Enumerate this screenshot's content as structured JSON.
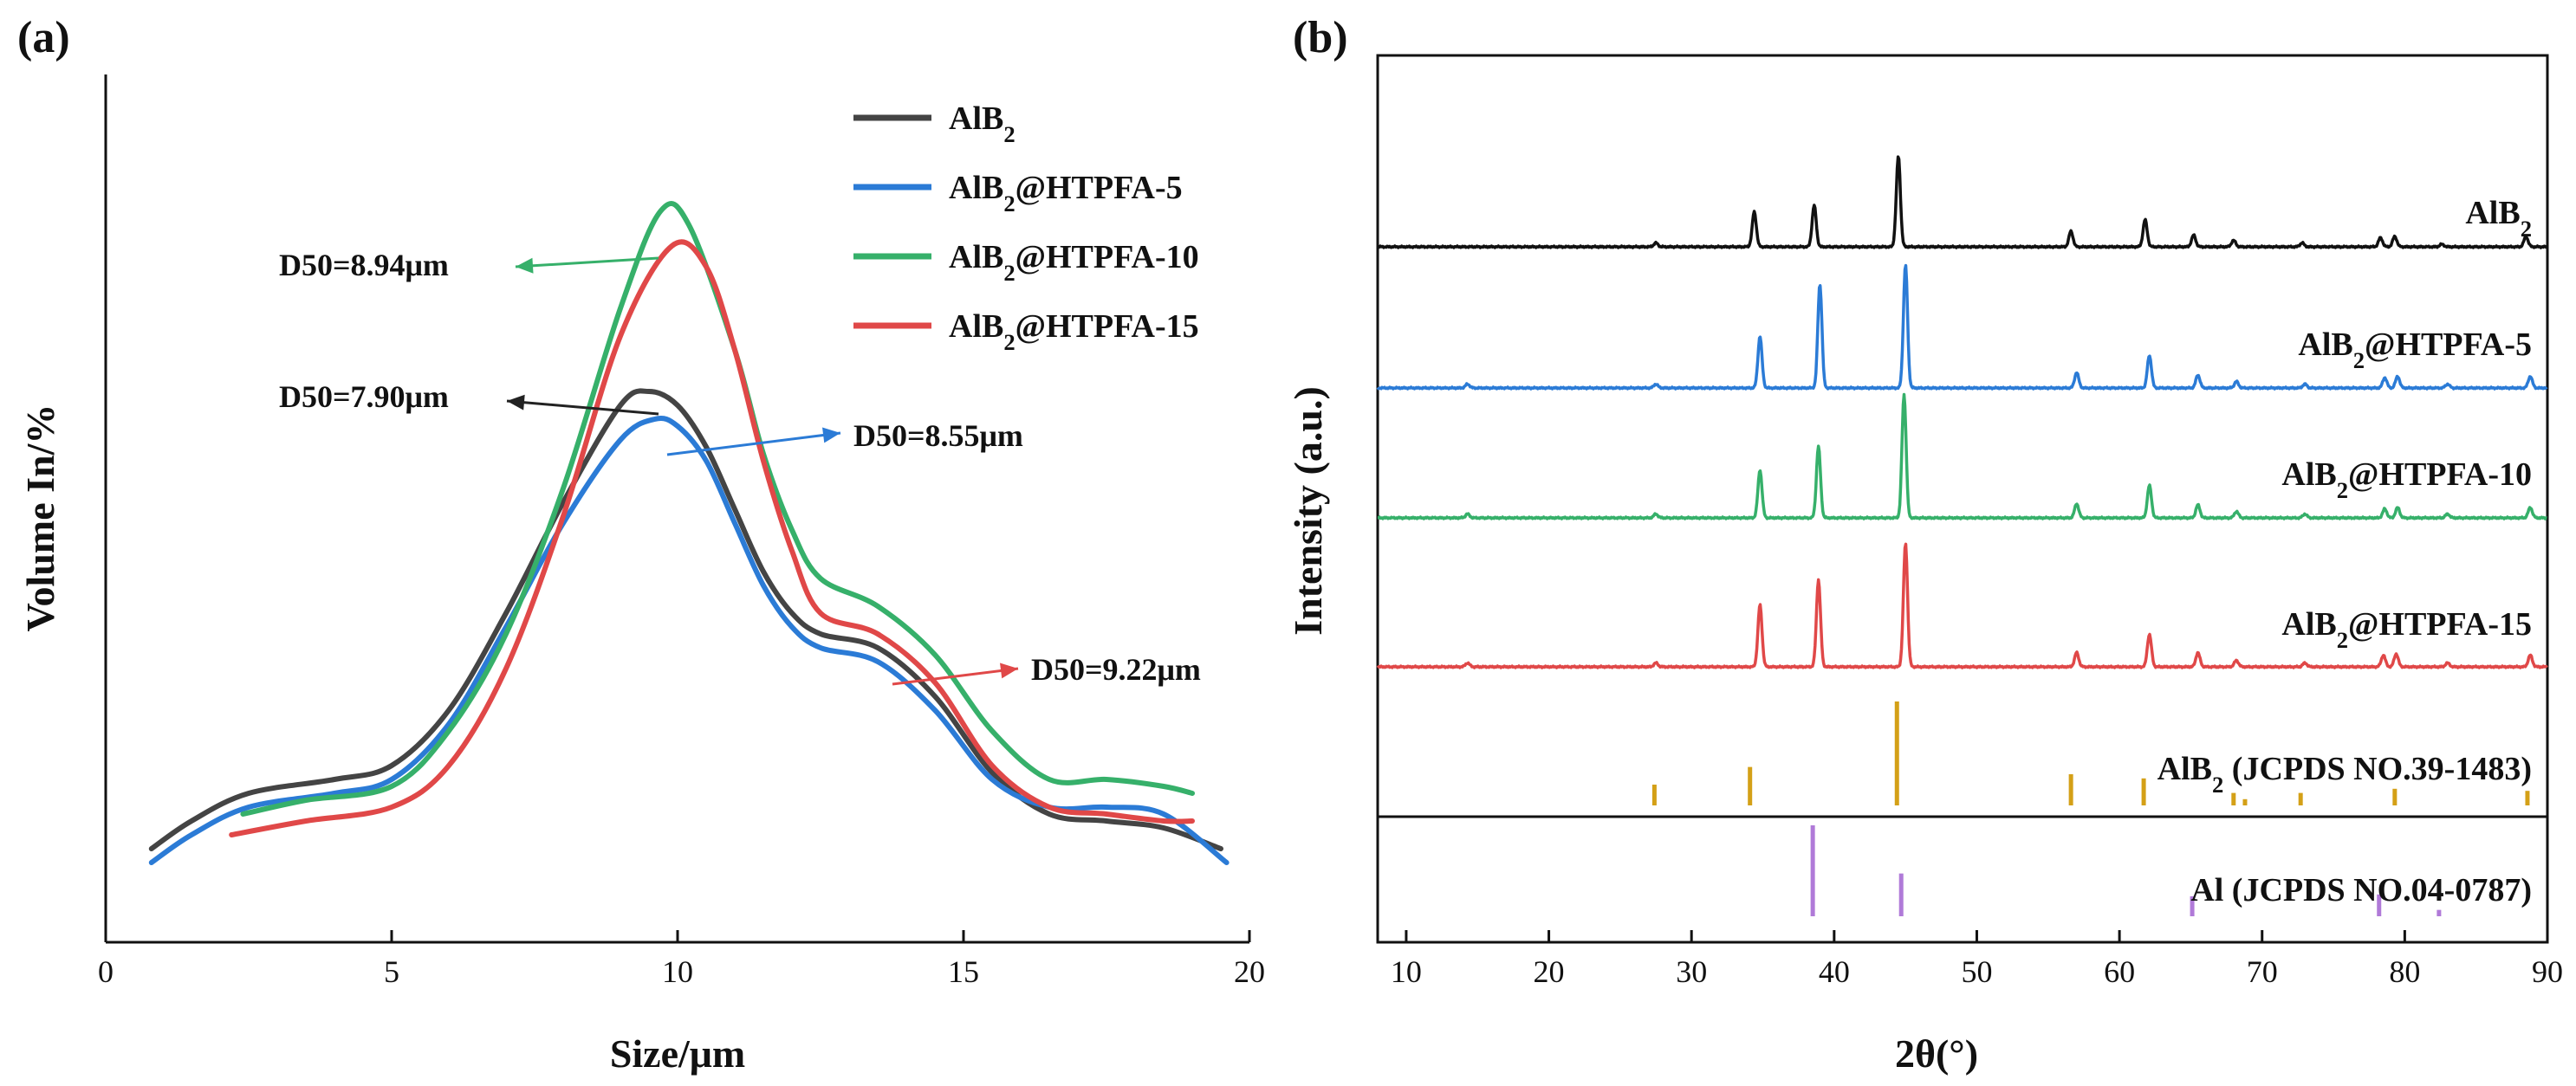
{
  "chart_data": [
    {
      "panel_label": "(a)",
      "type": "line",
      "xlabel": "Size/μm",
      "ylabel": "Volume In/%",
      "xlim": [
        0,
        20
      ],
      "x_ticks": [
        "0",
        "5",
        "10",
        "15",
        "20"
      ],
      "legend": {
        "placement": "top-right"
      },
      "series": [
        {
          "name": "AlB₂",
          "color": "#444444",
          "points": [
            [
              0.8,
              0.06
            ],
            [
              1.5,
              0.1
            ],
            [
              2.5,
              0.14
            ],
            [
              4,
              0.16
            ],
            [
              5,
              0.18
            ],
            [
              6,
              0.26
            ],
            [
              7,
              0.4
            ],
            [
              8,
              0.56
            ],
            [
              9,
              0.7
            ],
            [
              9.5,
              0.72
            ],
            [
              10,
              0.7
            ],
            [
              10.5,
              0.64
            ],
            [
              11,
              0.55
            ],
            [
              11.5,
              0.46
            ],
            [
              12,
              0.4
            ],
            [
              12.5,
              0.37
            ],
            [
              13.5,
              0.35
            ],
            [
              14.5,
              0.28
            ],
            [
              15.5,
              0.17
            ],
            [
              16.5,
              0.11
            ],
            [
              17.5,
              0.1
            ],
            [
              18.5,
              0.09
            ],
            [
              19.5,
              0.06
            ]
          ]
        },
        {
          "name": "AlB₂@HTPFA-5",
          "color": "#2b7bd6",
          "points": [
            [
              0.8,
              0.04
            ],
            [
              1.5,
              0.08
            ],
            [
              2.5,
              0.12
            ],
            [
              4,
              0.14
            ],
            [
              5,
              0.16
            ],
            [
              6,
              0.24
            ],
            [
              7,
              0.38
            ],
            [
              8,
              0.53
            ],
            [
              9,
              0.65
            ],
            [
              9.6,
              0.68
            ],
            [
              10,
              0.67
            ],
            [
              10.5,
              0.62
            ],
            [
              11,
              0.53
            ],
            [
              11.5,
              0.44
            ],
            [
              12,
              0.38
            ],
            [
              12.5,
              0.35
            ],
            [
              13.5,
              0.33
            ],
            [
              14.5,
              0.26
            ],
            [
              15.5,
              0.16
            ],
            [
              16.5,
              0.12
            ],
            [
              17.5,
              0.12
            ],
            [
              18.5,
              0.11
            ],
            [
              19.6,
              0.04
            ]
          ]
        },
        {
          "name": "AlB₂@HTPFA-10",
          "color": "#36b06a",
          "points": [
            [
              2.4,
              0.11
            ],
            [
              3.5,
              0.13
            ],
            [
              5,
              0.15
            ],
            [
              6,
              0.23
            ],
            [
              7,
              0.37
            ],
            [
              8,
              0.58
            ],
            [
              9,
              0.84
            ],
            [
              9.7,
              0.98
            ],
            [
              10.2,
              0.96
            ],
            [
              11,
              0.78
            ],
            [
              11.5,
              0.63
            ],
            [
              12,
              0.52
            ],
            [
              12.5,
              0.45
            ],
            [
              13.5,
              0.41
            ],
            [
              14.5,
              0.34
            ],
            [
              15.5,
              0.23
            ],
            [
              16.5,
              0.16
            ],
            [
              17.5,
              0.16
            ],
            [
              18.5,
              0.15
            ],
            [
              19,
              0.14
            ]
          ]
        },
        {
          "name": "AlB₂@HTPFA-15",
          "color": "#e04848",
          "points": [
            [
              2.2,
              0.08
            ],
            [
              3.5,
              0.1
            ],
            [
              5,
              0.12
            ],
            [
              6,
              0.18
            ],
            [
              7,
              0.32
            ],
            [
              8,
              0.54
            ],
            [
              9,
              0.8
            ],
            [
              9.9,
              0.93
            ],
            [
              10.5,
              0.9
            ],
            [
              11,
              0.78
            ],
            [
              11.5,
              0.62
            ],
            [
              12,
              0.49
            ],
            [
              12.5,
              0.4
            ],
            [
              13.5,
              0.37
            ],
            [
              14.5,
              0.3
            ],
            [
              15.5,
              0.18
            ],
            [
              16.5,
              0.12
            ],
            [
              17.5,
              0.11
            ],
            [
              18.5,
              0.1
            ],
            [
              19,
              0.1
            ]
          ]
        }
      ],
      "annotations": [
        {
          "text": "D50=8.94μm",
          "color": "#36b06a"
        },
        {
          "text": "D50=7.90μm",
          "color": "#222222"
        },
        {
          "text": "D50=8.55μm",
          "color": "#2b7bd6"
        },
        {
          "text": "D50=9.22μm",
          "color": "#e04848"
        }
      ]
    },
    {
      "panel_label": "(b)",
      "type": "line",
      "xlabel": "2θ(°)",
      "ylabel": "Intensity (a.u.)",
      "xlim": [
        8,
        90
      ],
      "x_ticks": [
        "10",
        "20",
        "30",
        "40",
        "50",
        "60",
        "70",
        "80",
        "90"
      ],
      "series": [
        {
          "name": "AlB₂",
          "color": "#111111",
          "peaks": [
            [
              27.5,
              0.03
            ],
            [
              34.4,
              0.27
            ],
            [
              38.6,
              0.32
            ],
            [
              44.5,
              0.7
            ],
            [
              56.6,
              0.12
            ],
            [
              61.8,
              0.21
            ],
            [
              65.2,
              0.09
            ],
            [
              68.0,
              0.05
            ],
            [
              72.8,
              0.03
            ],
            [
              78.3,
              0.07
            ],
            [
              79.3,
              0.08
            ],
            [
              82.6,
              0.02
            ],
            [
              88.5,
              0.08
            ]
          ]
        },
        {
          "name": "AlB₂@HTPFA-5",
          "color": "#2b7bd6",
          "peaks": [
            [
              14.3,
              0.03
            ],
            [
              27.5,
              0.03
            ],
            [
              34.8,
              0.4
            ],
            [
              39.0,
              0.8
            ],
            [
              45.0,
              0.95
            ],
            [
              57.0,
              0.12
            ],
            [
              62.1,
              0.25
            ],
            [
              65.5,
              0.1
            ],
            [
              68.2,
              0.05
            ],
            [
              73.0,
              0.03
            ],
            [
              78.6,
              0.08
            ],
            [
              79.5,
              0.09
            ],
            [
              83.0,
              0.03
            ],
            [
              88.8,
              0.09
            ]
          ]
        },
        {
          "name": "AlB₂@HTPFA-10",
          "color": "#36b06a",
          "peaks": [
            [
              14.3,
              0.03
            ],
            [
              27.5,
              0.03
            ],
            [
              34.8,
              0.37
            ],
            [
              38.9,
              0.55
            ],
            [
              44.9,
              0.95
            ],
            [
              57.0,
              0.11
            ],
            [
              62.1,
              0.25
            ],
            [
              65.5,
              0.1
            ],
            [
              68.2,
              0.05
            ],
            [
              73.0,
              0.03
            ],
            [
              78.6,
              0.07
            ],
            [
              79.5,
              0.08
            ],
            [
              83.0,
              0.03
            ],
            [
              88.8,
              0.08
            ]
          ]
        },
        {
          "name": "AlB₂@HTPFA-15",
          "color": "#e04848",
          "peaks": [
            [
              14.3,
              0.03
            ],
            [
              27.5,
              0.03
            ],
            [
              34.8,
              0.48
            ],
            [
              38.9,
              0.67
            ],
            [
              45.0,
              0.95
            ],
            [
              57.0,
              0.11
            ],
            [
              62.1,
              0.25
            ],
            [
              65.5,
              0.11
            ],
            [
              68.2,
              0.05
            ],
            [
              73.0,
              0.03
            ],
            [
              78.5,
              0.09
            ],
            [
              79.4,
              0.1
            ],
            [
              83.0,
              0.03
            ],
            [
              88.8,
              0.09
            ]
          ]
        },
        {
          "name": "AlB₂ (JCPDS NO.39-1483)",
          "color": "#d4a017",
          "style": "sticks",
          "peaks": [
            [
              27.4,
              0.2
            ],
            [
              34.1,
              0.37
            ],
            [
              44.4,
              1.0
            ],
            [
              56.6,
              0.3
            ],
            [
              61.7,
              0.26
            ],
            [
              68.0,
              0.12
            ],
            [
              68.8,
              0.06
            ],
            [
              72.7,
              0.12
            ],
            [
              79.3,
              0.16
            ],
            [
              88.6,
              0.14
            ]
          ]
        },
        {
          "name": "Al (JCPDS NO.04-0787)",
          "color": "#b07ad8",
          "style": "sticks",
          "peaks": [
            [
              38.5,
              1.0
            ],
            [
              44.7,
              0.47
            ],
            [
              65.1,
              0.22
            ],
            [
              78.2,
              0.24
            ],
            [
              82.4,
              0.07
            ]
          ]
        }
      ]
    }
  ]
}
